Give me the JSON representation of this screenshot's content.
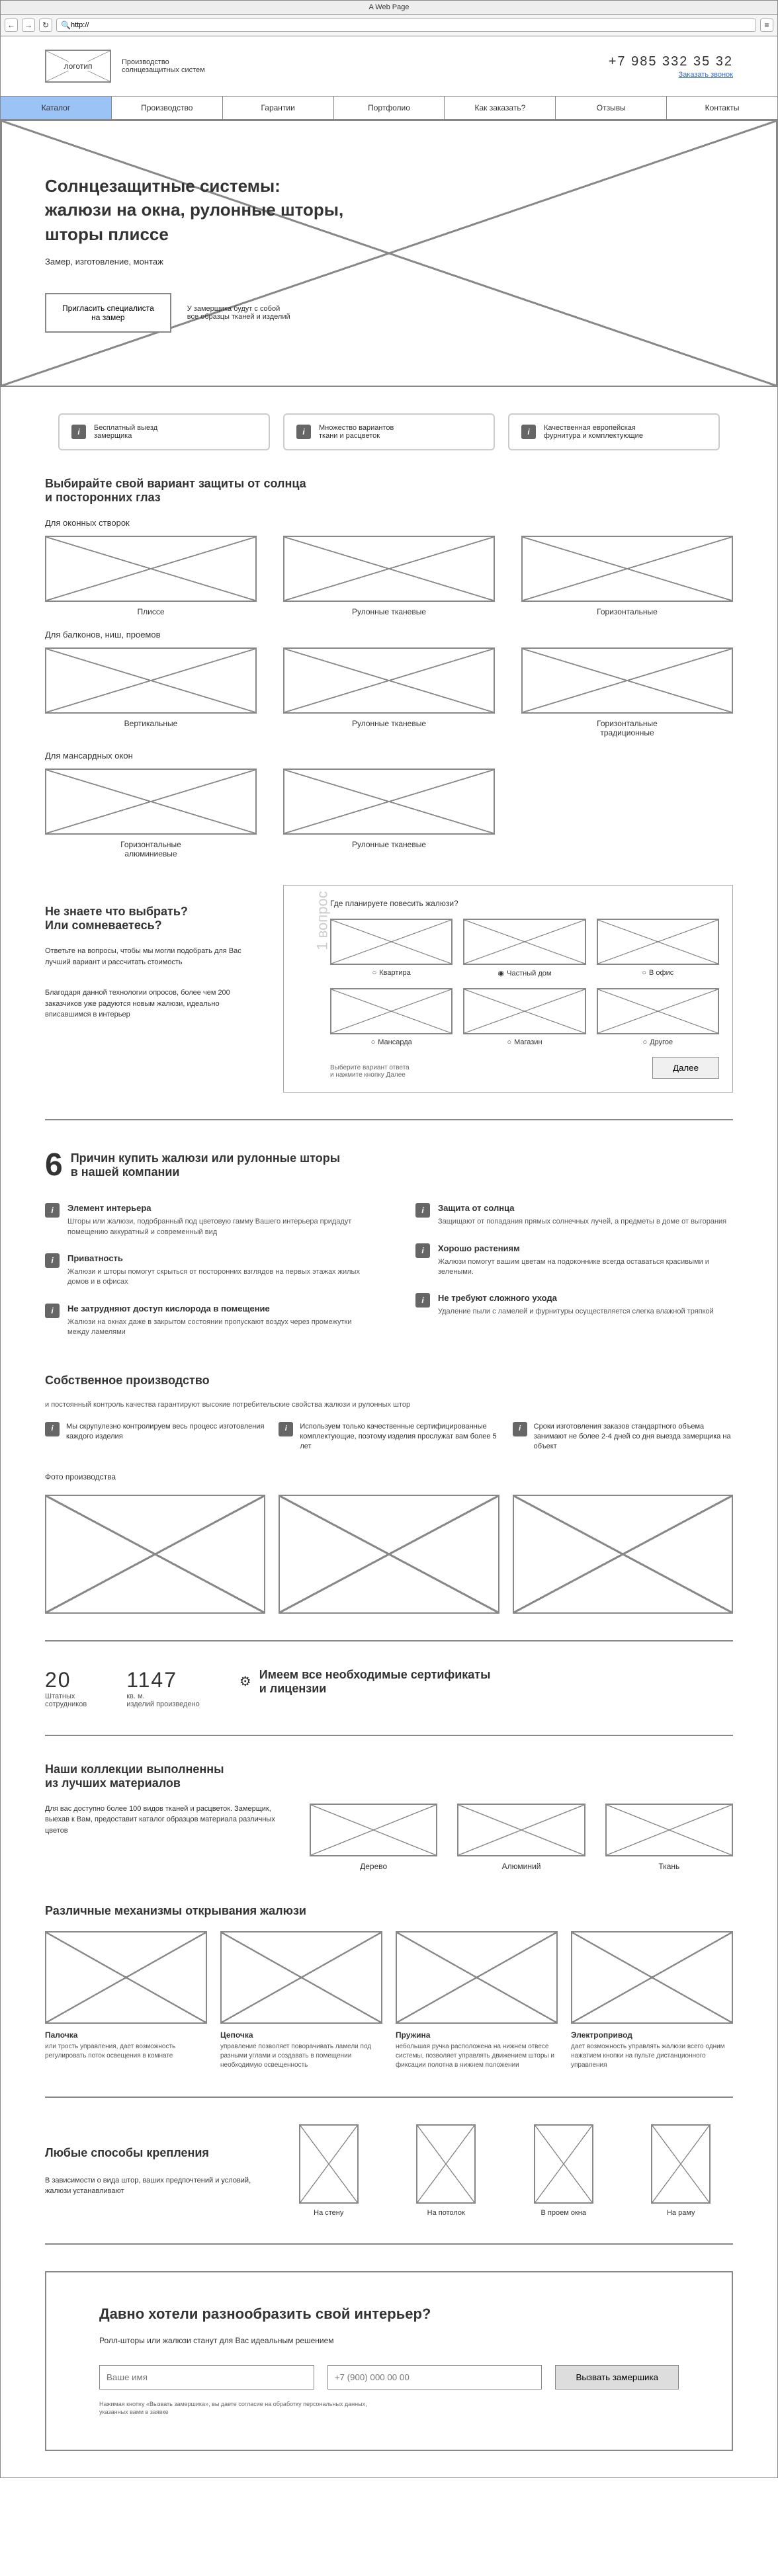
{
  "browser": {
    "title": "A Web Page",
    "url": "http://"
  },
  "header": {
    "logo": "логотип",
    "tagline": "Производство\nсолнцезащитных систем",
    "phone": "+7 985 332 35 32",
    "phone_link": "Заказать звонок"
  },
  "nav": [
    "Каталог",
    "Производство",
    "Гарантии",
    "Портфолио",
    "Как заказать?",
    "Отзывы",
    "Контакты"
  ],
  "hero": {
    "title": "Солнцезащитные системы:\nжалюзи на окна, рулонные шторы,\nшторы плиссе",
    "sub": "Замер, изготовление, монтаж",
    "btn": "Пригласить специалиста\nна замер",
    "note": "У замерщика будут с собой\nвсе образцы тканей и изделий"
  },
  "features": [
    "Бесплатный выезд\nзамерщика",
    "Множество вариантов\nткани и расцветок",
    "Качественная европейская\nфурнитура и комплектующие"
  ],
  "catalog": {
    "side": "Каталог",
    "title": "Выбирайте свой вариант защиты от солнца\nи посторонних глаз",
    "groups": [
      {
        "heading": "Для оконных створок",
        "items": [
          "Плиссе",
          "Рулонные тканевые",
          "Горизонтальные"
        ]
      },
      {
        "heading": "Для балконов, ниш, проемов",
        "items": [
          "Вертикальные",
          "Рулонные тканевые",
          "Горизонтальные\nтрадиционные"
        ]
      },
      {
        "heading": "Для мансардных окон",
        "items": [
          "Горизонтальные\nалюминиевые",
          "Рулонные тканевые"
        ]
      }
    ]
  },
  "quiz": {
    "left_title": "Не знаете что выбрать?\nИли сомневаетесь?",
    "left_p1": "Ответьте на вопросы, чтобы мы могли подобрать для Вас лучший вариант и рассчитать стоимость",
    "left_p2": "Благодаря данной технологии опросов, более чем 200 заказчиков уже радуются новым жалюзи, идеально вписавшимся в интерьер",
    "step": "1 вопрос",
    "q": "Где планируете повесить жалюзи?",
    "opts1": [
      "Квартира",
      "Частный дом",
      "В офис"
    ],
    "opts2": [
      "Мансарда",
      "Магазин",
      "Другое"
    ],
    "selected": 1,
    "hint": "Выберите вариант ответа\nи нажмите кнопку Далее",
    "next": "Далее"
  },
  "reasons": {
    "num": "6",
    "title": "Причин купить жалюзи или рулонные шторы\nв нашей компании",
    "left": [
      {
        "t": "Элемент интерьера",
        "d": "Шторы или жалюзи, подобранный под цветовую гамму Вашего интерьера придадут помещению аккуратный и современный вид"
      },
      {
        "t": "Приватность",
        "d": "Жалюзи и шторы помогут скрыться от посторонних взглядов на первых этажах жилых домов и в офисах"
      },
      {
        "t": "Не затрудняют доступ кислорода в помещение",
        "d": "Жалюзи на окнах даже в закрытом состоянии пропускают воздух через промежутки между ламелями"
      }
    ],
    "right": [
      {
        "t": "Защита от солнца",
        "d": "Защищают от попадания прямых солнечных лучей, а предметы в доме от выгорания"
      },
      {
        "t": "Хорошо растениям",
        "d": "Жалюзи помогут вашим цветам на подоконнике всегда оставаться красивыми и зелеными."
      },
      {
        "t": "Не требуют сложного ухода",
        "d": "Удаление пыли с ламелей и фурнитуры осуществляется слегка влажной тряпкой"
      }
    ]
  },
  "production": {
    "title": "Собственное производство",
    "sub": "и постоянный контроль качества гарантируют высокие потребительские свойства жалюзи и рулонных штор",
    "items": [
      "Мы скрупулезно контролируем весь процесс изготовления каждого изделия",
      "Используем только качественные сертифицированные комплектующие, поэтому изделия прослужат вам более 5 лет",
      "Сроки изготовления заказов стандартного объема занимают не более 2-4 дней со дня выезда замерщика на объект"
    ],
    "photos": "Фото производства"
  },
  "stats": {
    "s1_num": "20",
    "s1_label": "Штатных\nсотрудников",
    "s2_num": "1147",
    "s2_label": "кв. м.\nизделий произведено",
    "cert": "Имеем все необходимые сертификаты\nи лицензии"
  },
  "materials": {
    "title": "Наши коллекции выполненны\nиз лучших материалов",
    "desc": "Для вас доступно более 100 видов тканей и расцветок. Замерщик, выехав к Вам, предоставит каталог образцов материала  различных цветов",
    "items": [
      "Дерево",
      "Алюминий",
      "Ткань"
    ]
  },
  "mech": {
    "title": "Различные механизмы открывания жалюзи",
    "items": [
      {
        "t": "Палочка",
        "d": "или трость управления, дает возможность регулировать поток освещения в комнате"
      },
      {
        "t": "Цепочка",
        "d": "управление позволяет поворачивать ламели под разными углами и создавать в помещении необходимую освещенность"
      },
      {
        "t": "Пружина",
        "d": "небольшая ручка расположена на нижнем отвесе системы, позволяет управлять движением шторы и фиксации полотна в нижнем положении"
      },
      {
        "t": "Электропривод",
        "d": "дает возможность управлять жалюзи всего одним нажатием кнопки на пульте дистанционного управления"
      }
    ]
  },
  "mount": {
    "title": "Любые способы крепления",
    "desc": "В зависимости о вида штор, ваших предпочтений и условий, жалюзи устанавливают",
    "items": [
      "На стену",
      "На потолок",
      "В проем окна",
      "На раму"
    ]
  },
  "cta": {
    "title": "Давно хотели разнообразить свой интерьер?",
    "sub": "Ролл-шторы или жалюзи станут для Вас идеальным решением",
    "name_ph": "Ваше имя",
    "phone_ph": "+7 (900) 000 00 00",
    "btn": "Вызвать замершика",
    "note": "Нажимая кнопку «Вызвать замершика», вы даете согласие на обработку персональных данных,\nуказанных вами в заявке"
  }
}
